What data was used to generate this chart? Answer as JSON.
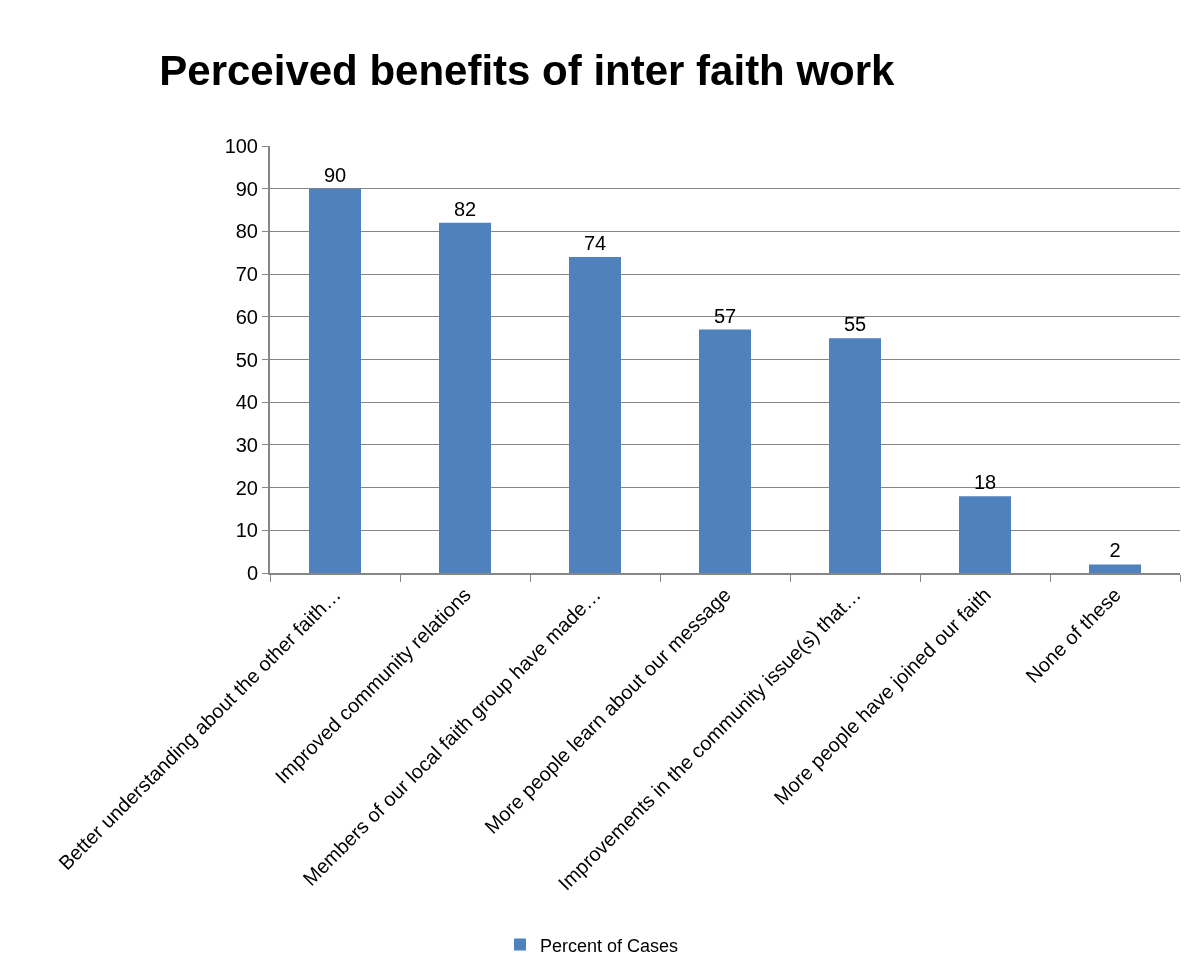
{
  "chart_data": {
    "type": "bar",
    "title": "Perceived benefits of inter faith work",
    "categories": [
      "Better understanding about the other faith…",
      "Improved community relations",
      "Members of our local faith group have made…",
      "More people learn about our message",
      "Improvements in the community issue(s) that…",
      "More people have joined our faith",
      "None of these"
    ],
    "series": [
      {
        "name": "Percent of Cases",
        "color": "#4f81bd",
        "values": [
          90,
          82,
          74,
          57,
          55,
          18,
          2
        ]
      }
    ],
    "ylim": [
      0,
      100
    ],
    "yticks": [
      0,
      10,
      20,
      30,
      40,
      50,
      60,
      70,
      80,
      90,
      100
    ],
    "grid": "y",
    "legend": "bottom",
    "data_labels": true
  }
}
